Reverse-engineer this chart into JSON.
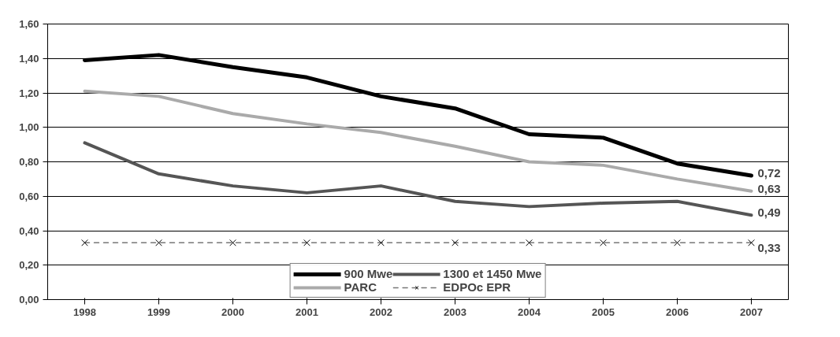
{
  "chart_data": {
    "type": "line",
    "categories": [
      "1998",
      "1999",
      "2000",
      "2001",
      "2002",
      "2003",
      "2004",
      "2005",
      "2006",
      "2007"
    ],
    "series": [
      {
        "name": "900 Mwe",
        "color": "#000000",
        "values": [
          1.39,
          1.42,
          1.35,
          1.29,
          1.18,
          1.11,
          0.96,
          0.94,
          0.79,
          0.72
        ],
        "value_labels": [
          null,
          null,
          null,
          null,
          null,
          null,
          null,
          null,
          null,
          "0,72"
        ]
      },
      {
        "name": "1300 et 1450 Mwe",
        "color": "#555555",
        "values": [
          0.91,
          0.73,
          0.66,
          0.62,
          0.66,
          0.57,
          0.54,
          0.56,
          0.57,
          0.49
        ],
        "value_labels": [
          null,
          null,
          null,
          null,
          null,
          null,
          null,
          null,
          null,
          "0,49"
        ]
      },
      {
        "name": "PARC",
        "color": "#aaaaaa",
        "values": [
          1.21,
          1.18,
          1.08,
          1.02,
          0.97,
          0.89,
          0.8,
          0.78,
          0.7,
          0.63
        ],
        "value_labels": [
          null,
          null,
          null,
          null,
          null,
          null,
          null,
          null,
          null,
          "0,63"
        ]
      },
      {
        "name": "EDPOc EPR",
        "color": "#777777",
        "marker": "cross",
        "line_style": "dashed",
        "values": [
          0.33,
          0.33,
          0.33,
          0.33,
          0.33,
          0.33,
          0.33,
          0.33,
          0.33,
          0.33
        ],
        "value_labels": [
          null,
          null,
          null,
          null,
          null,
          null,
          null,
          null,
          null,
          "0,33"
        ]
      }
    ],
    "ylim": [
      0,
      1.6
    ],
    "yticks": [
      {
        "value": 0,
        "label": "0,00"
      },
      {
        "value": 0.2,
        "label": "0,20"
      },
      {
        "value": 0.4,
        "label": "0,40"
      },
      {
        "value": 0.6,
        "label": "0,60"
      },
      {
        "value": 0.8,
        "label": "0,80"
      },
      {
        "value": 1.0,
        "label": "1,00"
      },
      {
        "value": 1.2,
        "label": "1,20"
      },
      {
        "value": 1.4,
        "label": "1,40"
      },
      {
        "value": 1.6,
        "label": "1,60"
      }
    ],
    "grid": "y",
    "legend": "bottom"
  }
}
